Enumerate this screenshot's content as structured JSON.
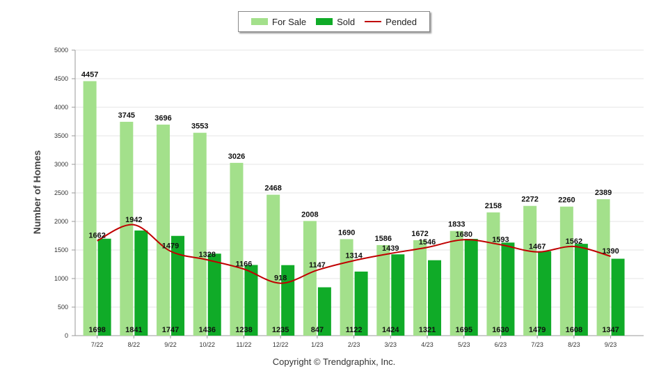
{
  "chart_data": {
    "type": "bar",
    "categories": [
      "7/22",
      "8/22",
      "9/22",
      "10/22",
      "11/22",
      "12/22",
      "1/23",
      "2/23",
      "3/23",
      "4/23",
      "5/23",
      "6/23",
      "7/23",
      "8/23",
      "9/23"
    ],
    "series": [
      {
        "name": "For Sale",
        "type": "bar",
        "color": "#a3e08b",
        "values": [
          4457,
          3745,
          3696,
          3553,
          3026,
          2468,
          2008,
          1690,
          1586,
          1672,
          1833,
          2158,
          2272,
          2260,
          2389
        ]
      },
      {
        "name": "Sold",
        "type": "bar",
        "color": "#10ab28",
        "values": [
          1698,
          1841,
          1747,
          1436,
          1238,
          1235,
          847,
          1122,
          1424,
          1321,
          1695,
          1630,
          1479,
          1608,
          1347
        ]
      },
      {
        "name": "Pended",
        "type": "line",
        "color": "#c00000",
        "values": [
          1662,
          1942,
          1479,
          1328,
          1166,
          918,
          1147,
          1314,
          1439,
          1546,
          1680,
          1593,
          1467,
          1562,
          1390
        ]
      }
    ],
    "ylabel": "Number of Homes",
    "xlabel": "",
    "ylim": [
      0,
      5000
    ],
    "yticks": [
      0,
      500,
      1000,
      1500,
      2000,
      2500,
      3000,
      3500,
      4000,
      4500,
      5000
    ],
    "grid": true,
    "legend_position": "top-center"
  },
  "copyright": "Copyright © Trendgraphix, Inc."
}
